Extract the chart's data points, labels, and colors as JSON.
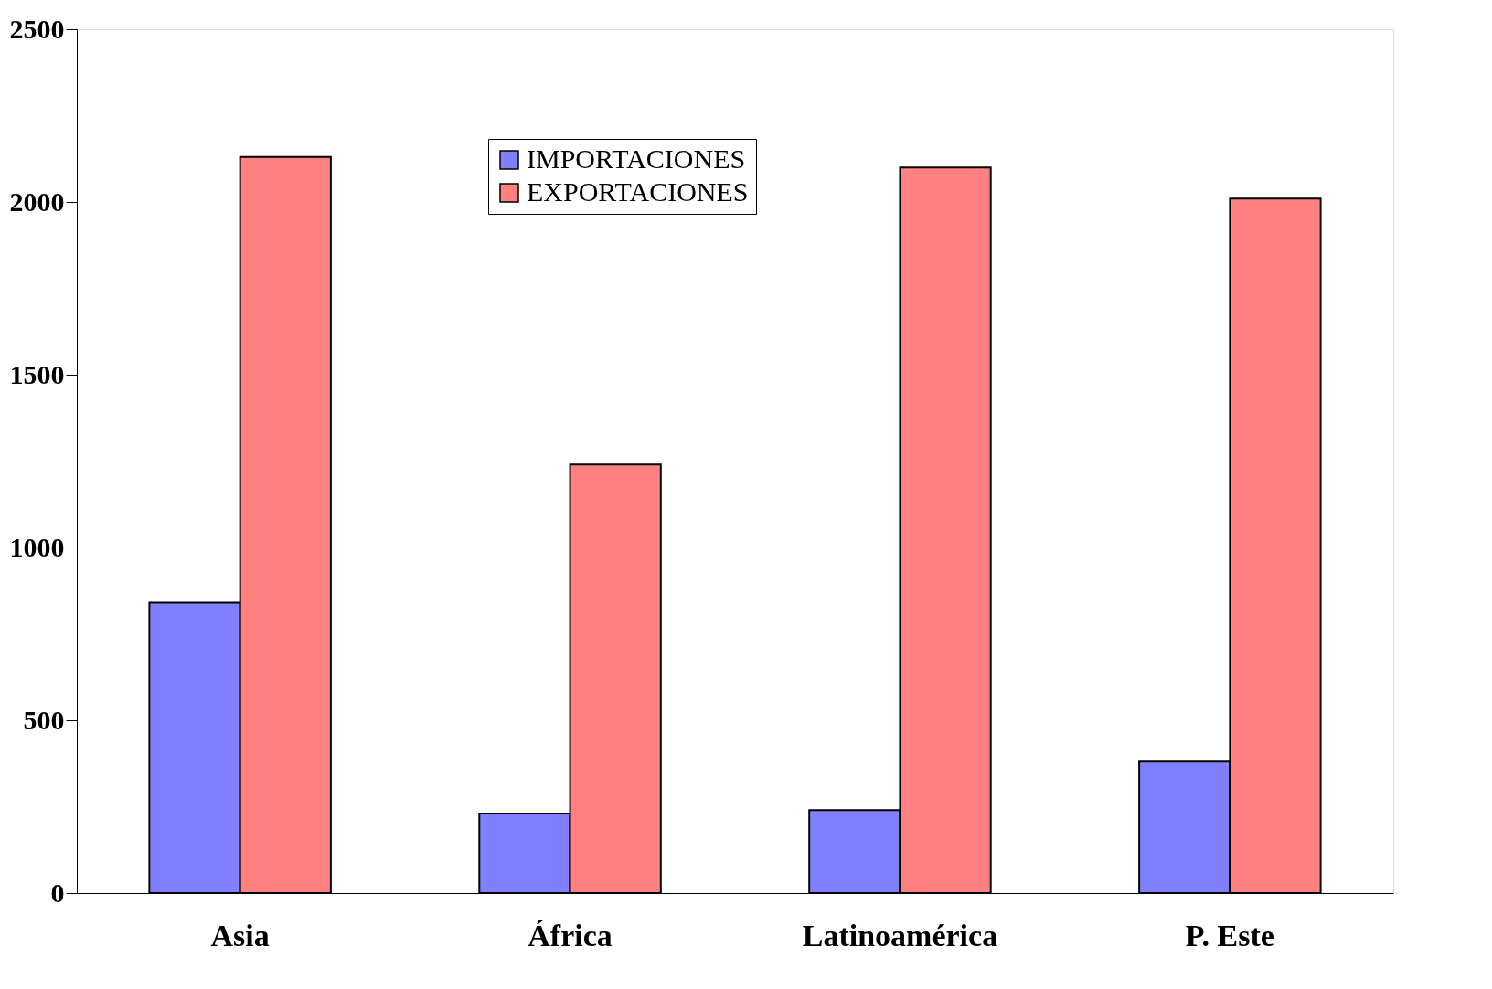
{
  "chart_data": {
    "type": "bar",
    "categories": [
      "Asia",
      "África",
      "Latinoamérica",
      "P. Este"
    ],
    "series": [
      {
        "name": "IMPORTACIONES",
        "color": "#8080ff",
        "values": [
          840,
          230,
          240,
          380
        ]
      },
      {
        "name": "EXPORTACIONES",
        "color": "#ff8080",
        "values": [
          2130,
          1240,
          2100,
          2010
        ]
      }
    ],
    "ylim": [
      0,
      2500
    ],
    "yticks": [
      0,
      500,
      1000,
      1500,
      2000,
      2500
    ],
    "grid": false,
    "legend": "top"
  }
}
